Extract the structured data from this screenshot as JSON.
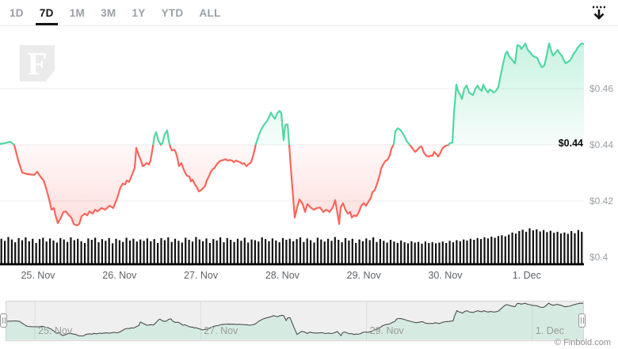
{
  "header": {
    "range_tabs": [
      {
        "label": "1D",
        "active": false
      },
      {
        "label": "7D",
        "active": true
      },
      {
        "label": "1M",
        "active": false
      },
      {
        "label": "3M",
        "active": false
      },
      {
        "label": "1Y",
        "active": false
      },
      {
        "label": "YTD",
        "active": false
      },
      {
        "label": "ALL",
        "active": false
      }
    ]
  },
  "watermark": {
    "letter": "F"
  },
  "price_axis": {
    "labels": [
      {
        "text": "$0.46",
        "price": 0.46
      },
      {
        "text": "$0.44",
        "price": 0.44
      },
      {
        "text": "$0.42",
        "price": 0.42
      },
      {
        "text": "$0.4",
        "price": 0.4
      }
    ],
    "current": {
      "text": "$0.44",
      "price": 0.44
    }
  },
  "time_axis": {
    "labels": [
      "25. Nov",
      "26. Nov",
      "27. Nov",
      "28. Nov",
      "29. Nov",
      "30. Nov",
      "1. Dec"
    ]
  },
  "navigator": {
    "labels": [
      "25. Nov",
      "27. Nov",
      "29. Nov",
      "1. Dec"
    ]
  },
  "credit": "© Finbold.com",
  "chart_data": {
    "type": "line+bar",
    "title": "7-day cryptocurrency price with volume",
    "baseline_price": 0.44,
    "ylim": [
      0.398,
      0.4785
    ],
    "x_range_days": [
      "25. Nov",
      "1. Dec"
    ],
    "colors": {
      "up": "#52d7a2",
      "down": "#f9665c",
      "volume": "#111111",
      "nav_line": "#4d4d4d"
    },
    "price_points": [
      [
        0,
        0.4403
      ],
      [
        6,
        0.4406
      ],
      [
        13,
        0.4411
      ],
      [
        18,
        0.44
      ],
      [
        23,
        0.4344
      ],
      [
        28,
        0.4301
      ],
      [
        34,
        0.4296
      ],
      [
        43,
        0.4293
      ],
      [
        47,
        0.4304
      ],
      [
        51,
        0.4287
      ],
      [
        55,
        0.4273
      ],
      [
        58,
        0.4248
      ],
      [
        62,
        0.4206
      ],
      [
        65,
        0.4169
      ],
      [
        68,
        0.4175
      ],
      [
        70,
        0.4149
      ],
      [
        73,
        0.4121
      ],
      [
        77,
        0.4141
      ],
      [
        80,
        0.4161
      ],
      [
        83,
        0.4163
      ],
      [
        87,
        0.4149
      ],
      [
        90,
        0.4141
      ],
      [
        93,
        0.4118
      ],
      [
        97,
        0.4113
      ],
      [
        100,
        0.4118
      ],
      [
        103,
        0.4146
      ],
      [
        107,
        0.4155
      ],
      [
        110,
        0.4149
      ],
      [
        113,
        0.4163
      ],
      [
        117,
        0.4155
      ],
      [
        120,
        0.4169
      ],
      [
        123,
        0.4163
      ],
      [
        128,
        0.4175
      ],
      [
        133,
        0.4169
      ],
      [
        138,
        0.4183
      ],
      [
        143,
        0.4175
      ],
      [
        148,
        0.4211
      ],
      [
        152,
        0.4248
      ],
      [
        155,
        0.4262
      ],
      [
        158,
        0.4259
      ],
      [
        160,
        0.4273
      ],
      [
        163,
        0.4268
      ],
      [
        167,
        0.4296
      ],
      [
        170,
        0.4318
      ],
      [
        172,
        0.4389
      ],
      [
        175,
        0.4363
      ],
      [
        178,
        0.4344
      ],
      [
        180,
        0.4324
      ],
      [
        182,
        0.4327
      ],
      [
        185,
        0.4335
      ],
      [
        188,
        0.433
      ],
      [
        190,
        0.4344
      ],
      [
        193,
        0.4394
      ],
      [
        195,
        0.4431
      ],
      [
        197,
        0.4445
      ],
      [
        200,
        0.4414
      ],
      [
        203,
        0.44
      ],
      [
        205,
        0.4406
      ],
      [
        208,
        0.4439
      ],
      [
        211,
        0.4451
      ],
      [
        213,
        0.4414
      ],
      [
        215,
        0.4392
      ],
      [
        217,
        0.438
      ],
      [
        220,
        0.4383
      ],
      [
        222,
        0.4372
      ],
      [
        224,
        0.4352
      ],
      [
        226,
        0.4324
      ],
      [
        229,
        0.4335
      ],
      [
        231,
        0.4318
      ],
      [
        234,
        0.4299
      ],
      [
        236,
        0.429
      ],
      [
        239,
        0.4287
      ],
      [
        241,
        0.427
      ],
      [
        243,
        0.4276
      ],
      [
        246,
        0.4259
      ],
      [
        248,
        0.4251
      ],
      [
        251,
        0.4234
      ],
      [
        254,
        0.4239
      ],
      [
        256,
        0.4245
      ],
      [
        259,
        0.4254
      ],
      [
        261,
        0.4273
      ],
      [
        264,
        0.429
      ],
      [
        266,
        0.4304
      ],
      [
        269,
        0.4315
      ],
      [
        271,
        0.4318
      ],
      [
        274,
        0.4332
      ],
      [
        277,
        0.4341
      ],
      [
        279,
        0.4344
      ],
      [
        282,
        0.4346
      ],
      [
        285,
        0.4349
      ],
      [
        287,
        0.4344
      ],
      [
        290,
        0.4346
      ],
      [
        293,
        0.4344
      ],
      [
        295,
        0.4338
      ],
      [
        298,
        0.4344
      ],
      [
        300,
        0.4341
      ],
      [
        303,
        0.4338
      ],
      [
        306,
        0.4332
      ],
      [
        308,
        0.4335
      ],
      [
        311,
        0.4324
      ],
      [
        314,
        0.4332
      ],
      [
        317,
        0.4338
      ],
      [
        320,
        0.4366
      ],
      [
        323,
        0.4403
      ],
      [
        327,
        0.4437
      ],
      [
        330,
        0.4456
      ],
      [
        333,
        0.447
      ],
      [
        337,
        0.4485
      ],
      [
        340,
        0.4501
      ],
      [
        342,
        0.4515
      ],
      [
        344,
        0.4504
      ],
      [
        347,
        0.4493
      ],
      [
        350,
        0.4513
      ],
      [
        353,
        0.4521
      ],
      [
        355,
        0.4513
      ],
      [
        358,
        0.4417
      ],
      [
        360,
        0.447
      ],
      [
        363,
        0.4473
      ],
      [
        365,
        0.44
      ],
      [
        368,
        0.4282
      ],
      [
        372,
        0.4141
      ],
      [
        375,
        0.4177
      ],
      [
        378,
        0.4206
      ],
      [
        382,
        0.4189
      ],
      [
        385,
        0.4161
      ],
      [
        388,
        0.4189
      ],
      [
        392,
        0.4177
      ],
      [
        396,
        0.4169
      ],
      [
        400,
        0.4175
      ],
      [
        404,
        0.4177
      ],
      [
        408,
        0.4161
      ],
      [
        412,
        0.4169
      ],
      [
        416,
        0.4161
      ],
      [
        420,
        0.4177
      ],
      [
        423,
        0.4203
      ],
      [
        426,
        0.4155
      ],
      [
        428,
        0.4118
      ],
      [
        430,
        0.4177
      ],
      [
        433,
        0.4192
      ],
      [
        436,
        0.4169
      ],
      [
        439,
        0.4155
      ],
      [
        442,
        0.4161
      ],
      [
        444,
        0.4141
      ],
      [
        447,
        0.4149
      ],
      [
        450,
        0.4146
      ],
      [
        453,
        0.4161
      ],
      [
        456,
        0.4183
      ],
      [
        459,
        0.4192
      ],
      [
        462,
        0.4183
      ],
      [
        465,
        0.4197
      ],
      [
        468,
        0.4211
      ],
      [
        470,
        0.4231
      ],
      [
        473,
        0.4239
      ],
      [
        476,
        0.4262
      ],
      [
        479,
        0.429
      ],
      [
        481,
        0.4315
      ],
      [
        484,
        0.4332
      ],
      [
        487,
        0.4344
      ],
      [
        489,
        0.4346
      ],
      [
        492,
        0.4363
      ],
      [
        494,
        0.4386
      ],
      [
        497,
        0.4403
      ],
      [
        499,
        0.4448
      ],
      [
        502,
        0.4459
      ],
      [
        505,
        0.4454
      ],
      [
        508,
        0.4442
      ],
      [
        511,
        0.4428
      ],
      [
        513,
        0.4414
      ],
      [
        515,
        0.4408
      ],
      [
        518,
        0.4397
      ],
      [
        521,
        0.4386
      ],
      [
        524,
        0.4375
      ],
      [
        526,
        0.438
      ],
      [
        528,
        0.4386
      ],
      [
        530,
        0.4392
      ],
      [
        532,
        0.4394
      ],
      [
        535,
        0.4372
      ],
      [
        538,
        0.4361
      ],
      [
        541,
        0.4358
      ],
      [
        543,
        0.4361
      ],
      [
        546,
        0.4361
      ],
      [
        548,
        0.4375
      ],
      [
        551,
        0.4366
      ],
      [
        553,
        0.4358
      ],
      [
        556,
        0.4372
      ],
      [
        558,
        0.4386
      ],
      [
        561,
        0.4394
      ],
      [
        563,
        0.4397
      ],
      [
        566,
        0.44
      ],
      [
        568,
        0.4406
      ],
      [
        571,
        0.4408
      ],
      [
        573,
        0.4513
      ],
      [
        576,
        0.4614
      ],
      [
        578,
        0.4592
      ],
      [
        581,
        0.4577
      ],
      [
        583,
        0.4563
      ],
      [
        586,
        0.46
      ],
      [
        589,
        0.4611
      ],
      [
        592,
        0.4586
      ],
      [
        595,
        0.458
      ],
      [
        597,
        0.4577
      ],
      [
        600,
        0.46
      ],
      [
        603,
        0.4611
      ],
      [
        605,
        0.46
      ],
      [
        608,
        0.4592
      ],
      [
        610,
        0.4614
      ],
      [
        613,
        0.4597
      ],
      [
        616,
        0.4586
      ],
      [
        618,
        0.4597
      ],
      [
        621,
        0.4592
      ],
      [
        623,
        0.4586
      ],
      [
        626,
        0.4592
      ],
      [
        629,
        0.4606
      ],
      [
        632,
        0.4648
      ],
      [
        635,
        0.469
      ],
      [
        638,
        0.4724
      ],
      [
        640,
        0.4732
      ],
      [
        643,
        0.4713
      ],
      [
        646,
        0.4704
      ],
      [
        648,
        0.4696
      ],
      [
        650,
        0.469
      ],
      [
        653,
        0.4755
      ],
      [
        656,
        0.4752
      ],
      [
        658,
        0.4741
      ],
      [
        661,
        0.4752
      ],
      [
        663,
        0.4761
      ],
      [
        666,
        0.4738
      ],
      [
        669,
        0.473
      ],
      [
        672,
        0.4718
      ],
      [
        675,
        0.4713
      ],
      [
        678,
        0.471
      ],
      [
        681,
        0.469
      ],
      [
        684,
        0.4676
      ],
      [
        687,
        0.4682
      ],
      [
        690,
        0.4718
      ],
      [
        693,
        0.4761
      ],
      [
        696,
        0.4732
      ],
      [
        698,
        0.4718
      ],
      [
        701,
        0.4727
      ],
      [
        704,
        0.4738
      ],
      [
        706,
        0.4727
      ],
      [
        709,
        0.4718
      ],
      [
        712,
        0.4699
      ],
      [
        714,
        0.469
      ],
      [
        717,
        0.4696
      ],
      [
        719,
        0.4699
      ],
      [
        722,
        0.4713
      ],
      [
        724,
        0.4724
      ],
      [
        727,
        0.4735
      ],
      [
        729,
        0.4746
      ],
      [
        732,
        0.4755
      ],
      [
        734,
        0.4761
      ],
      [
        737,
        0.4758
      ]
    ],
    "volume_rel": [
      70,
      64,
      75,
      68,
      60,
      72,
      66,
      74,
      63,
      70,
      58,
      69,
      73,
      62,
      71,
      65,
      59,
      72,
      68,
      61,
      74,
      66,
      70,
      63,
      58,
      71,
      67,
      73,
      60,
      69,
      64,
      72,
      57,
      70,
      66,
      61,
      73,
      65,
      70,
      62,
      68,
      64,
      71,
      63,
      69,
      58,
      72,
      66,
      74,
      61,
      70,
      64,
      59,
      73,
      67,
      62,
      75,
      68,
      63,
      71,
      58,
      69,
      65,
      74,
      60,
      72,
      67,
      61,
      70,
      64,
      73,
      59,
      68,
      66,
      62,
      74,
      69,
      63,
      71,
      65,
      60,
      72,
      67,
      70,
      63,
      69,
      74,
      61,
      71,
      66,
      59,
      73,
      68,
      62,
      70,
      64,
      75,
      67,
      60,
      72,
      65,
      70,
      58,
      68,
      63,
      71,
      66,
      74,
      61,
      69,
      64,
      59,
      67,
      62,
      58,
      65,
      60,
      57,
      63,
      59,
      61,
      56,
      62,
      58,
      60,
      57,
      59,
      62,
      58,
      64,
      60,
      66,
      63,
      68,
      65,
      70,
      67,
      72,
      69,
      74,
      71,
      76,
      73,
      78,
      80,
      77,
      82,
      88,
      85,
      92,
      96,
      90,
      100,
      94,
      97,
      91,
      95,
      89,
      93,
      87,
      90,
      85,
      88,
      84,
      92,
      86,
      95,
      90
    ]
  }
}
